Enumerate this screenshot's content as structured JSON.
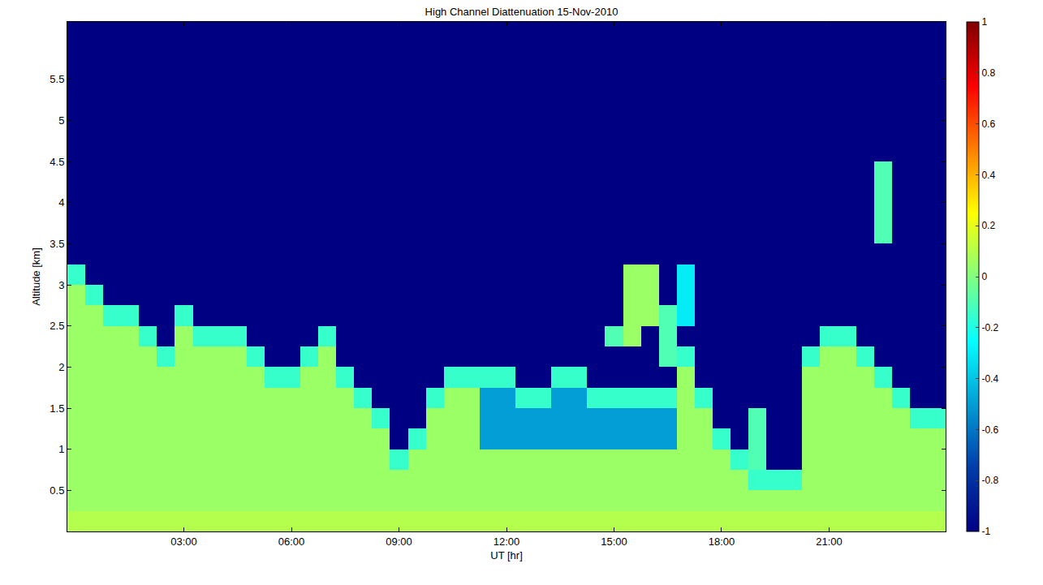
{
  "chart_data": {
    "type": "heatmap",
    "title": "High Channel Diattenuation 15-Nov-2010",
    "x_label": "UT [hr]",
    "y_label": "Altitude [km]",
    "color": "jet",
    "xlim": [
      -0.25,
      24.25
    ],
    "ylim": [
      0,
      6.2
    ],
    "xticks": [
      {
        "value": 3,
        "label": "03:00"
      },
      {
        "value": 6,
        "label": "06:00"
      },
      {
        "value": 9,
        "label": "09:00"
      },
      {
        "value": 12,
        "label": "12:00"
      },
      {
        "value": 15,
        "label": "15:00"
      },
      {
        "value": 18,
        "label": "18:00"
      },
      {
        "value": 21,
        "label": "21:00"
      }
    ],
    "yticks": [
      0.5,
      1,
      1.5,
      2,
      2.5,
      3,
      3.5,
      4,
      4.5,
      5,
      5.5
    ],
    "colorbar_range": [
      -1,
      1
    ],
    "colorbar_ticks": [
      -1,
      -0.8,
      -0.6,
      -0.4,
      -0.2,
      0,
      0.2,
      0.4,
      0.6,
      0.8,
      1
    ],
    "x": [
      0,
      0.5,
      1,
      1.5,
      2,
      2.5,
      3,
      3.5,
      4,
      4.5,
      5,
      5.5,
      6,
      6.5,
      7,
      7.5,
      8,
      8.5,
      9,
      9.5,
      10,
      10.5,
      11,
      11.5,
      12,
      12.5,
      13,
      13.5,
      14,
      14.5,
      15,
      15.5,
      16,
      16.5,
      17,
      17.5,
      18,
      18.5,
      19,
      19.5,
      20,
      20.5,
      21,
      21.5,
      22,
      22.5,
      23,
      23.5,
      24
    ],
    "y": [
      0.125,
      0.375,
      0.625,
      0.875,
      1.125,
      1.375,
      1.625,
      1.875,
      2.125,
      2.375,
      2.625,
      2.875,
      3.125,
      3.375,
      3.625,
      3.875,
      4.125,
      4.375,
      4.625,
      4.875,
      5.125,
      5.375,
      5.625,
      5.875,
      6.125
    ],
    "z_by_time": [
      [
        0.1,
        0.05,
        0.05,
        0.05,
        0.05,
        0.05,
        0.05,
        0.05,
        0.05,
        0.05,
        0.05,
        0.05,
        -0.15,
        -1,
        -1,
        -1,
        -1,
        -1,
        -1,
        -1,
        -1,
        -1,
        -1,
        -1,
        -1
      ],
      [
        0.1,
        0.05,
        0.05,
        0.05,
        0.05,
        0.05,
        0.05,
        0.05,
        0.05,
        0.05,
        0.05,
        -0.15,
        -1,
        -1,
        -1,
        -1,
        -1,
        -1,
        -1,
        -1,
        -1,
        -1,
        -1,
        -1,
        -1
      ],
      [
        0.1,
        0.05,
        0.05,
        0.05,
        0.05,
        0.05,
        0.05,
        0.05,
        0.05,
        0.05,
        -0.15,
        -1,
        -1,
        -1,
        -1,
        -1,
        -1,
        -1,
        -1,
        -1,
        -1,
        -1,
        -1,
        -1,
        -1
      ],
      [
        0.1,
        0.05,
        0.05,
        0.05,
        0.05,
        0.05,
        0.05,
        0.05,
        0.05,
        0.05,
        -0.15,
        -1,
        -1,
        -1,
        -1,
        -1,
        -1,
        -1,
        -1,
        -1,
        -1,
        -1,
        -1,
        -1,
        -1
      ],
      [
        0.1,
        0.05,
        0.05,
        0.05,
        0.05,
        0.05,
        0.05,
        0.05,
        0.05,
        -0.15,
        -1,
        -1,
        -1,
        -1,
        -1,
        -1,
        -1,
        -1,
        -1,
        -1,
        -1,
        -1,
        -1,
        -1,
        -1
      ],
      [
        0.1,
        0.05,
        0.05,
        0.05,
        0.05,
        0.05,
        0.05,
        0.05,
        -0.15,
        -1,
        -1,
        -1,
        -1,
        -1,
        -1,
        -1,
        -1,
        -1,
        -1,
        -1,
        -1,
        -1,
        -1,
        -1,
        -1
      ],
      [
        0.1,
        0.05,
        0.05,
        0.05,
        0.05,
        0.05,
        0.05,
        0.05,
        0.05,
        0.05,
        -0.15,
        -1,
        -1,
        -1,
        -1,
        -1,
        -1,
        -1,
        -1,
        -1,
        -1,
        -1,
        -1,
        -1,
        -1
      ],
      [
        0.1,
        0.05,
        0.05,
        0.05,
        0.05,
        0.05,
        0.05,
        0.05,
        0.05,
        -0.15,
        -1,
        -1,
        -1,
        -1,
        -1,
        -1,
        -1,
        -1,
        -1,
        -1,
        -1,
        -1,
        -1,
        -1,
        -1
      ],
      [
        0.1,
        0.05,
        0.05,
        0.05,
        0.05,
        0.05,
        0.05,
        0.05,
        0.05,
        -0.15,
        -1,
        -1,
        -1,
        -1,
        -1,
        -1,
        -1,
        -1,
        -1,
        -1,
        -1,
        -1,
        -1,
        -1,
        -1
      ],
      [
        0.1,
        0.05,
        0.05,
        0.05,
        0.05,
        0.05,
        0.05,
        0.05,
        0.05,
        -0.15,
        -1,
        -1,
        -1,
        -1,
        -1,
        -1,
        -1,
        -1,
        -1,
        -1,
        -1,
        -1,
        -1,
        -1,
        -1
      ],
      [
        0.1,
        0.05,
        0.05,
        0.05,
        0.05,
        0.05,
        0.05,
        0.05,
        -0.15,
        -1,
        -1,
        -1,
        -1,
        -1,
        -1,
        -1,
        -1,
        -1,
        -1,
        -1,
        -1,
        -1,
        -1,
        -1,
        -1
      ],
      [
        0.1,
        0.05,
        0.05,
        0.05,
        0.05,
        0.05,
        0.05,
        -0.15,
        -1,
        -1,
        -1,
        -1,
        -1,
        -1,
        -1,
        -1,
        -1,
        -1,
        -1,
        -1,
        -1,
        -1,
        -1,
        -1,
        -1
      ],
      [
        0.1,
        0.05,
        0.05,
        0.05,
        0.05,
        0.05,
        0.05,
        -0.15,
        -1,
        -1,
        -1,
        -1,
        -1,
        -1,
        -1,
        -1,
        -1,
        -1,
        -1,
        -1,
        -1,
        -1,
        -1,
        -1,
        -1
      ],
      [
        0.1,
        0.05,
        0.05,
        0.05,
        0.05,
        0.05,
        0.05,
        0.05,
        -0.15,
        -1,
        -1,
        -1,
        -1,
        -1,
        -1,
        -1,
        -1,
        -1,
        -1,
        -1,
        -1,
        -1,
        -1,
        -1,
        -1
      ],
      [
        0.1,
        0.05,
        0.05,
        0.05,
        0.05,
        0.05,
        0.05,
        0.05,
        0.05,
        -0.15,
        -1,
        -1,
        -1,
        -1,
        -1,
        -1,
        -1,
        -1,
        -1,
        -1,
        -1,
        -1,
        -1,
        -1,
        -1
      ],
      [
        0.1,
        0.05,
        0.05,
        0.05,
        0.05,
        0.05,
        0.05,
        -0.15,
        -1,
        -1,
        -1,
        -1,
        -1,
        -1,
        -1,
        -1,
        -1,
        -1,
        -1,
        -1,
        -1,
        -1,
        -1,
        -1,
        -1
      ],
      [
        0.1,
        0.05,
        0.05,
        0.05,
        0.05,
        0.05,
        -0.15,
        -1,
        -1,
        -1,
        -1,
        -1,
        -1,
        -1,
        -1,
        -1,
        -1,
        -1,
        -1,
        -1,
        -1,
        -1,
        -1,
        -1,
        -1
      ],
      [
        0.1,
        0.05,
        0.05,
        0.05,
        0.05,
        -0.15,
        -1,
        -1,
        -1,
        -1,
        -1,
        -1,
        -1,
        -1,
        -1,
        -1,
        -1,
        -1,
        -1,
        -1,
        -1,
        -1,
        -1,
        -1,
        -1
      ],
      [
        0.1,
        0.05,
        0.05,
        -0.15,
        -1,
        -1,
        -1,
        -1,
        -1,
        -1,
        -1,
        -1,
        -1,
        -1,
        -1,
        -1,
        -1,
        -1,
        -1,
        -1,
        -1,
        -1,
        -1,
        -1,
        -1
      ],
      [
        0.1,
        0.05,
        0.05,
        0.05,
        -0.15,
        -1,
        -1,
        -1,
        -1,
        -1,
        -1,
        -1,
        -1,
        -1,
        -1,
        -1,
        -1,
        -1,
        -1,
        -1,
        -1,
        -1,
        -1,
        -1,
        -1
      ],
      [
        0.1,
        0.05,
        0.05,
        0.05,
        0.05,
        0.05,
        -0.15,
        -1,
        -1,
        -1,
        -1,
        -1,
        -1,
        -1,
        -1,
        -1,
        -1,
        -1,
        -1,
        -1,
        -1,
        -1,
        -1,
        -1,
        -1
      ],
      [
        0.1,
        0.05,
        0.05,
        0.05,
        0.05,
        0.05,
        0.05,
        -0.15,
        -1,
        -1,
        -1,
        -1,
        -1,
        -1,
        -1,
        -1,
        -1,
        -1,
        -1,
        -1,
        -1,
        -1,
        -1,
        -1,
        -1
      ],
      [
        0.1,
        0.05,
        0.05,
        0.05,
        0.05,
        0.05,
        0.05,
        -0.15,
        -1,
        -1,
        -1,
        -1,
        -1,
        -1,
        -1,
        -1,
        -1,
        -1,
        -1,
        -1,
        -1,
        -1,
        -1,
        -1,
        -1
      ],
      [
        0.1,
        0.05,
        0.05,
        0.05,
        -0.5,
        -0.5,
        -0.5,
        -0.15,
        -1,
        -1,
        -1,
        -1,
        -1,
        -1,
        -1,
        -1,
        -1,
        -1,
        -1,
        -1,
        -1,
        -1,
        -1,
        -1,
        -1
      ],
      [
        0.1,
        0.05,
        0.05,
        0.05,
        -0.5,
        -0.5,
        -0.5,
        -0.15,
        -1,
        -1,
        -1,
        -1,
        -1,
        -1,
        -1,
        -1,
        -1,
        -1,
        -1,
        -1,
        -1,
        -1,
        -1,
        -1,
        -1
      ],
      [
        0.1,
        0.05,
        0.05,
        0.05,
        -0.5,
        -0.5,
        -0.15,
        -1,
        -1,
        -1,
        -1,
        -1,
        -1,
        -1,
        -1,
        -1,
        -1,
        -1,
        -1,
        -1,
        -1,
        -1,
        -1,
        -1,
        -1
      ],
      [
        0.1,
        0.05,
        0.05,
        0.05,
        -0.5,
        -0.5,
        -0.15,
        -1,
        -1,
        -1,
        -1,
        -1,
        -1,
        -1,
        -1,
        -1,
        -1,
        -1,
        -1,
        -1,
        -1,
        -1,
        -1,
        -1,
        -1
      ],
      [
        0.1,
        0.05,
        0.05,
        0.05,
        -0.5,
        -0.5,
        -0.5,
        -0.15,
        -1,
        -1,
        -1,
        -1,
        -1,
        -1,
        -1,
        -1,
        -1,
        -1,
        -1,
        -1,
        -1,
        -1,
        -1,
        -1,
        -1
      ],
      [
        0.1,
        0.05,
        0.05,
        0.05,
        -0.5,
        -0.5,
        -0.5,
        -0.15,
        -1,
        -1,
        -1,
        -1,
        -1,
        -1,
        -1,
        -1,
        -1,
        -1,
        -1,
        -1,
        -1,
        -1,
        -1,
        -1,
        -1
      ],
      [
        0.1,
        0.05,
        0.05,
        0.05,
        -0.5,
        -0.5,
        -0.15,
        -1,
        -1,
        -1,
        -1,
        -1,
        -1,
        -1,
        -1,
        -1,
        -1,
        -1,
        -1,
        -1,
        -1,
        -1,
        -1,
        -1,
        -1
      ],
      [
        0.1,
        0.05,
        0.05,
        0.05,
        -0.5,
        -0.5,
        -0.15,
        -1,
        -1,
        -0.1,
        -1,
        -1,
        -1,
        -1,
        -1,
        -1,
        -1,
        -1,
        -1,
        -1,
        -1,
        -1,
        -1,
        -1,
        -1
      ],
      [
        0.1,
        0.05,
        0.05,
        0.05,
        -0.5,
        -0.5,
        -0.15,
        -1,
        -1,
        0.05,
        0.05,
        0.05,
        0.05,
        -1,
        -1,
        -1,
        -1,
        -1,
        -1,
        -1,
        -1,
        -1,
        -1,
        -1,
        -1
      ],
      [
        0.1,
        0.05,
        0.05,
        0.05,
        -0.5,
        -0.5,
        -0.15,
        -1,
        -1,
        -1,
        0.05,
        0.05,
        0.05,
        -1,
        -1,
        -1,
        -1,
        -1,
        -1,
        -1,
        -1,
        -1,
        -1,
        -1,
        -1
      ],
      [
        0.1,
        0.05,
        0.05,
        0.05,
        -0.5,
        -0.5,
        -0.15,
        -1,
        -0.1,
        -0.1,
        -0.1,
        -1,
        -1,
        -1,
        -1,
        -1,
        -1,
        -1,
        -1,
        -1,
        -1,
        -1,
        -1,
        -1,
        -1
      ],
      [
        0.1,
        0.05,
        0.05,
        0.05,
        0.05,
        0.05,
        0.05,
        0.05,
        -0.15,
        -1,
        -0.3,
        -0.3,
        -0.3,
        -1,
        -1,
        -1,
        -1,
        -1,
        -1,
        -1,
        -1,
        -1,
        -1,
        -1,
        -1
      ],
      [
        0.1,
        0.05,
        0.05,
        0.05,
        0.05,
        0.05,
        -0.15,
        -1,
        -1,
        -1,
        -1,
        -1,
        -1,
        -1,
        -1,
        -1,
        -1,
        -1,
        -1,
        -1,
        -1,
        -1,
        -1,
        -1,
        -1
      ],
      [
        0.1,
        0.05,
        0.05,
        0.05,
        -0.15,
        -1,
        -1,
        -1,
        -1,
        -1,
        -1,
        -1,
        -1,
        -1,
        -1,
        -1,
        -1,
        -1,
        -1,
        -1,
        -1,
        -1,
        -1,
        -1,
        -1
      ],
      [
        0.1,
        0.05,
        0.05,
        -0.15,
        -1,
        -1,
        -1,
        -1,
        -1,
        -1,
        -1,
        -1,
        -1,
        -1,
        -1,
        -1,
        -1,
        -1,
        -1,
        -1,
        -1,
        -1,
        -1,
        -1,
        -1
      ],
      [
        0.1,
        0.05,
        -0.15,
        -0.1,
        -0.1,
        -0.1,
        -1,
        -1,
        -1,
        -1,
        -1,
        -1,
        -1,
        -1,
        -1,
        -1,
        -1,
        -1,
        -1,
        -1,
        -1,
        -1,
        -1,
        -1,
        -1
      ],
      [
        0.1,
        0.05,
        -0.15,
        -1,
        -1,
        -1,
        -1,
        -1,
        -1,
        -1,
        -1,
        -1,
        -1,
        -1,
        -1,
        -1,
        -1,
        -1,
        -1,
        -1,
        -1,
        -1,
        -1,
        -1,
        -1
      ],
      [
        0.1,
        0.05,
        -0.15,
        -1,
        -1,
        -1,
        -1,
        -1,
        -1,
        -1,
        -1,
        -1,
        -1,
        -1,
        -1,
        -1,
        -1,
        -1,
        -1,
        -1,
        -1,
        -1,
        -1,
        -1,
        -1
      ],
      [
        0.1,
        0.05,
        0.05,
        0.05,
        0.05,
        0.05,
        0.05,
        0.05,
        -0.15,
        -1,
        -1,
        -1,
        -1,
        -1,
        -1,
        -1,
        -1,
        -1,
        -1,
        -1,
        -1,
        -1,
        -1,
        -1,
        -1
      ],
      [
        0.1,
        0.05,
        0.05,
        0.05,
        0.05,
        0.05,
        0.05,
        0.05,
        0.05,
        -0.15,
        -1,
        -1,
        -1,
        -1,
        -1,
        -1,
        -1,
        -1,
        -1,
        -1,
        -1,
        -1,
        -1,
        -1,
        -1
      ],
      [
        0.1,
        0.05,
        0.05,
        0.05,
        0.05,
        0.05,
        0.05,
        0.05,
        0.05,
        -0.15,
        -1,
        -1,
        -1,
        -1,
        -1,
        -1,
        -1,
        -1,
        -1,
        -1,
        -1,
        -1,
        -1,
        -1,
        -1
      ],
      [
        0.1,
        0.05,
        0.05,
        0.05,
        0.05,
        0.05,
        0.05,
        0.05,
        -0.15,
        -1,
        -1,
        -1,
        -1,
        -1,
        -1,
        -1,
        -1,
        -1,
        -1,
        -1,
        -1,
        -1,
        -1,
        -1,
        -1
      ],
      [
        0.1,
        0.05,
        0.05,
        0.05,
        0.05,
        0.05,
        0.05,
        -0.15,
        -1,
        -1,
        -1,
        -1,
        -1,
        -1,
        -0.1,
        -0.1,
        -0.1,
        -0.1,
        -1,
        -1,
        -1,
        -1,
        -1,
        -1,
        -1
      ],
      [
        0.1,
        0.05,
        0.05,
        0.05,
        0.05,
        0.05,
        -0.15,
        -1,
        -1,
        -1,
        -1,
        -1,
        -1,
        -1,
        -1,
        -1,
        -1,
        -1,
        -1,
        -1,
        -1,
        -1,
        -1,
        -1,
        -1
      ],
      [
        0.1,
        0.05,
        0.05,
        0.05,
        0.05,
        -0.15,
        -1,
        -1,
        -1,
        -1,
        -1,
        -1,
        -1,
        -1,
        -1,
        -1,
        -1,
        -1,
        -1,
        -1,
        -1,
        -1,
        -1,
        -1,
        -1
      ],
      [
        0.1,
        0.05,
        0.05,
        0.05,
        0.05,
        -0.15,
        -1,
        -1,
        -1,
        -1,
        -1,
        -1,
        -1,
        -1,
        -1,
        -1,
        -1,
        -1,
        -1,
        -1,
        -1,
        -1,
        -1,
        -1,
        -1
      ]
    ]
  }
}
